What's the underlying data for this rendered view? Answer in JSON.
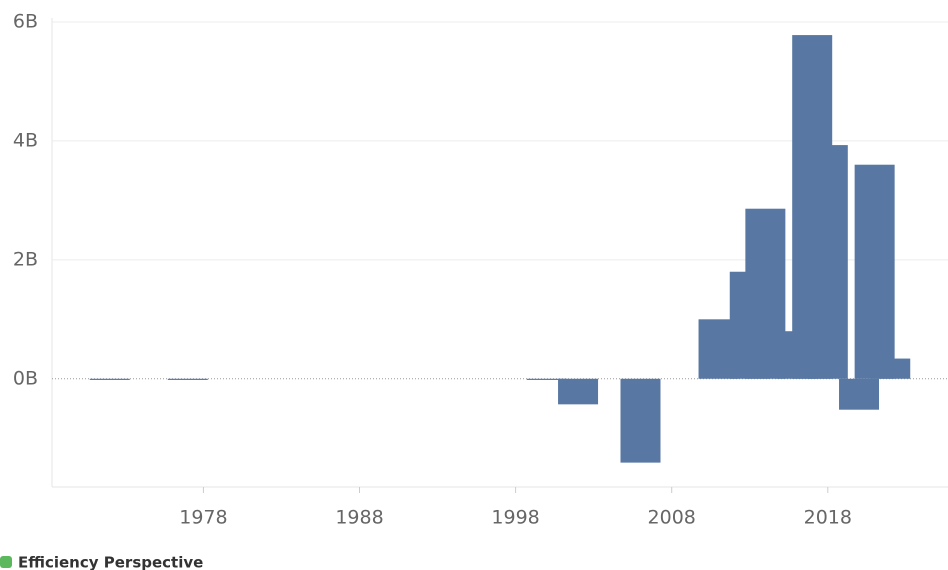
{
  "chart_data": {
    "type": "bar",
    "x": [
      1972,
      1977,
      2000,
      2002,
      2006,
      2016,
      2011,
      2013,
      2014,
      2018,
      2017,
      2020,
      2022,
      2021
    ],
    "values": [
      -0.02,
      -0.02,
      -0.02,
      -0.43,
      -1.41,
      0.8,
      1.0,
      1.8,
      2.86,
      3.93,
      5.78,
      -0.52,
      0.34,
      3.6
    ],
    "color": "#5878a3",
    "xlim": [
      1968.3,
      2025.7
    ],
    "xticks": [
      1978,
      1988,
      1998,
      2008,
      2018
    ],
    "ylim": [
      -1.82,
      6
    ],
    "yticks": [
      {
        "value": 0,
        "label": "0B"
      },
      {
        "value": 2,
        "label": "2B"
      },
      {
        "value": 4,
        "label": "4B"
      },
      {
        "value": 6,
        "label": "6B"
      }
    ],
    "grid": true
  },
  "footer": "Efficiency Perspective"
}
